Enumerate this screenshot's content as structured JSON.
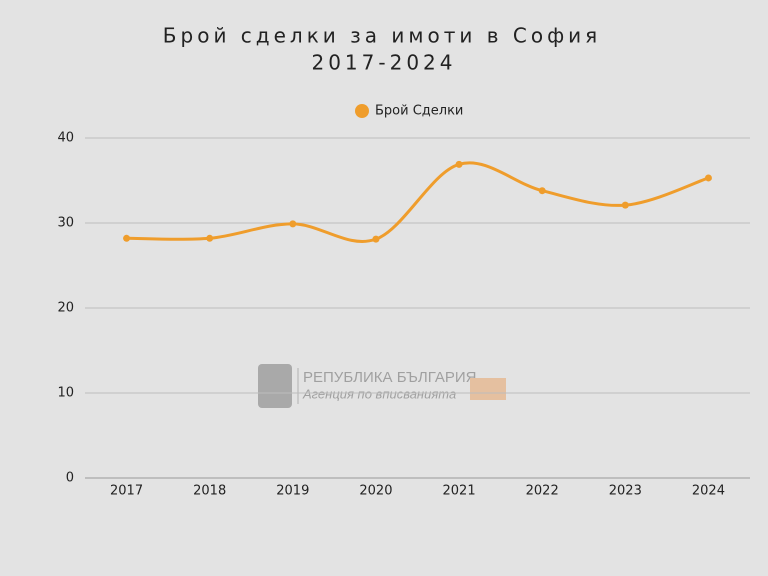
{
  "chart_data": {
    "type": "line",
    "title": "Брой сделки за имоти в София",
    "subtitle": "2017-2024",
    "categories": [
      "2017",
      "2018",
      "2019",
      "2020",
      "2021",
      "2022",
      "2023",
      "2024"
    ],
    "series": [
      {
        "name": "Брой Сделки",
        "color": "#ef9d2c",
        "values": [
          28.2,
          28.2,
          29.9,
          28.1,
          36.9,
          33.8,
          32.1,
          35.3
        ]
      }
    ],
    "ylim": [
      0,
      40
    ],
    "yticks": [
      0,
      10,
      20,
      30,
      40
    ],
    "grid": true,
    "smooth": true,
    "legend": "top",
    "annotations": [
      "РЕПУБЛИКА БЪЛГАРИЯ",
      "Агенция по вписванията"
    ]
  }
}
